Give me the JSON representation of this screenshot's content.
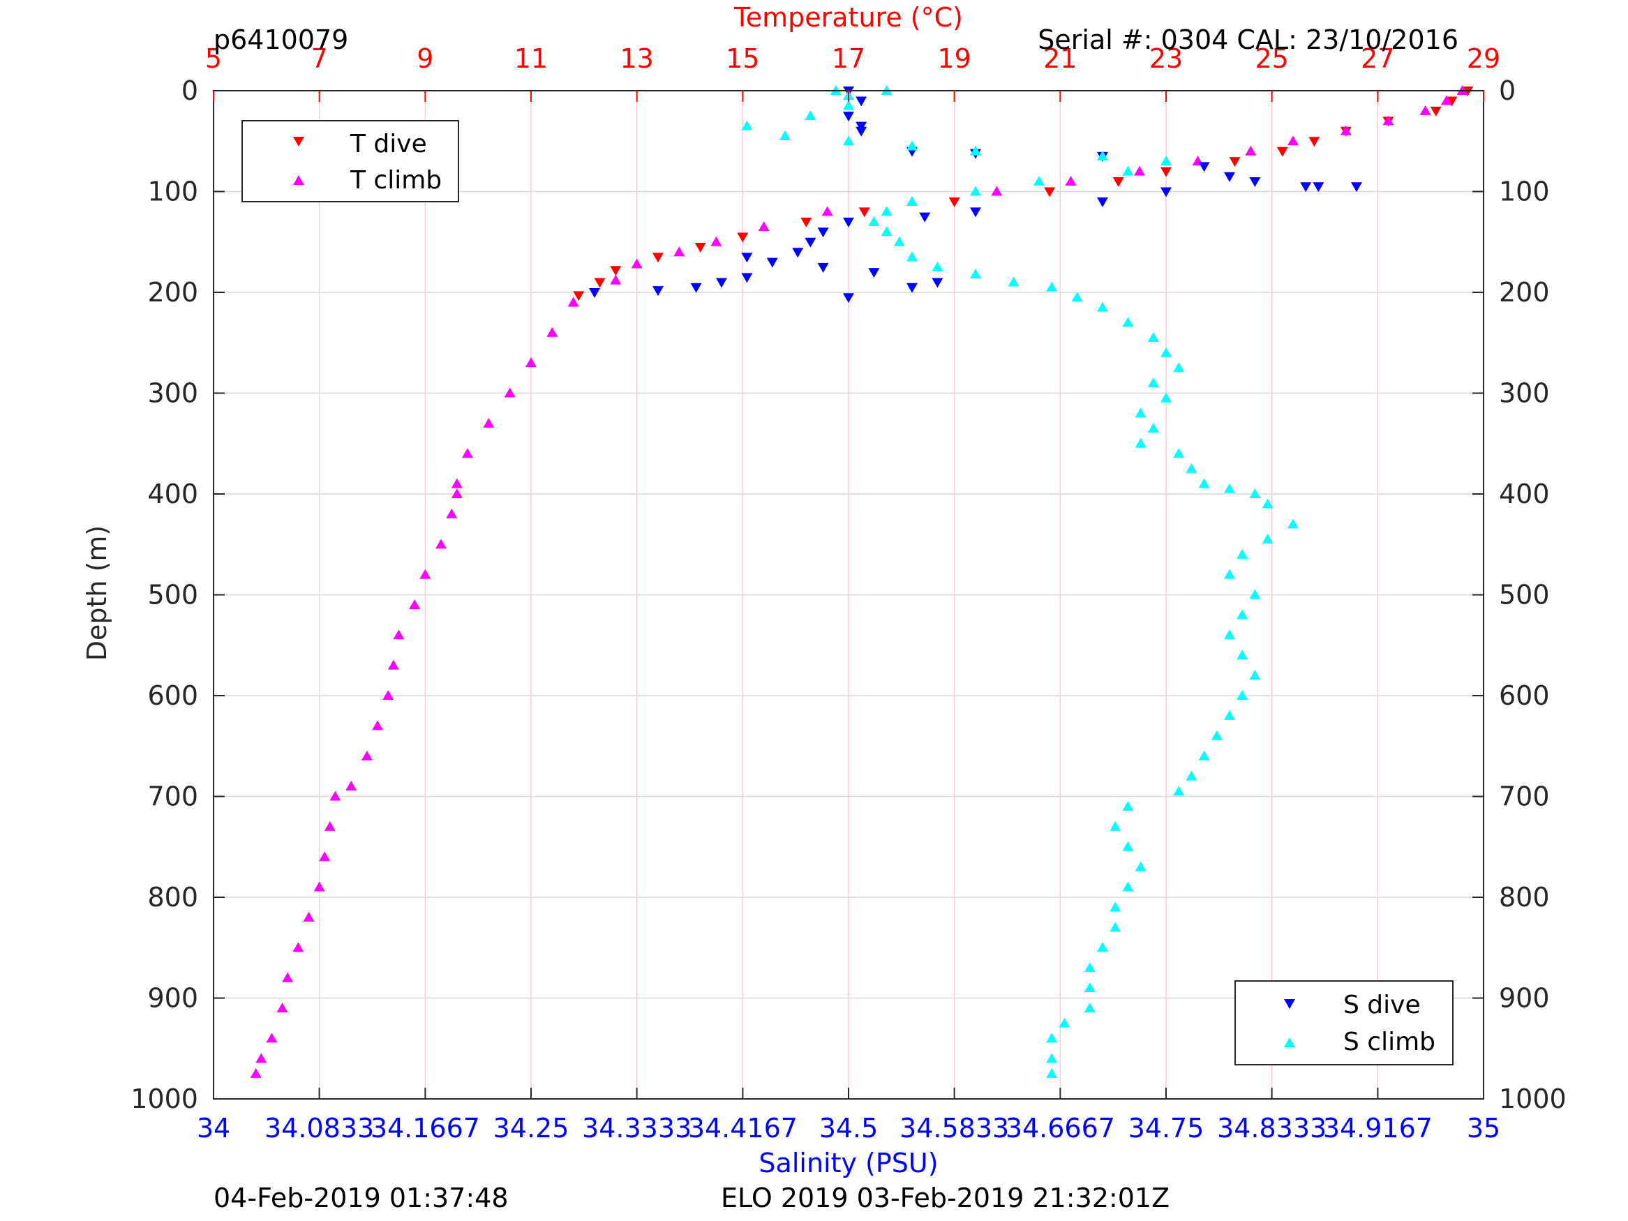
{
  "header": {
    "left": "p6410079",
    "right": "Serial #: 0304  CAL: 23/10/2016"
  },
  "footer": {
    "left": "04-Feb-2019 01:37:48",
    "center": "ELO 2019 03-Feb-2019 21:32:01Z"
  },
  "colors": {
    "t_dive": "#ff0000",
    "t_climb": "#ff00ff",
    "s_dive": "#0000ff",
    "s_climb": "#00ffff",
    "temp_axis": "#ff0000",
    "sal_axis": "#0000ff",
    "axis": "#262626"
  },
  "chart_data": {
    "type": "scatter",
    "ylabel": "Depth (m)",
    "ylim": [
      1000,
      0
    ],
    "y_ticks": [
      "0",
      "100",
      "200",
      "300",
      "400",
      "500",
      "600",
      "700",
      "800",
      "900",
      "1000"
    ],
    "y_reversed": true,
    "temperature_axis": {
      "label": "Temperature (°C)",
      "position": "top",
      "range": [
        5,
        29
      ],
      "ticks": [
        "5",
        "7",
        "9",
        "11",
        "13",
        "15",
        "17",
        "19",
        "21",
        "23",
        "25",
        "27",
        "29"
      ]
    },
    "salinity_axis": {
      "label": "Salinity (PSU)",
      "position": "bottom",
      "range": [
        34,
        35
      ],
      "ticks": [
        "34",
        "34.0833",
        "34.1667",
        "34.25",
        "34.3333",
        "34.4167",
        "34.5",
        "34.5833",
        "34.6667",
        "34.75",
        "34.8333",
        "34.9167",
        "35"
      ]
    },
    "grid": true,
    "legends": [
      {
        "placement": "top-left",
        "entries": [
          {
            "name": "T dive",
            "marker": "triangle-down",
            "color": "#ff0000"
          },
          {
            "name": "T climb",
            "marker": "triangle-up",
            "color": "#ff00ff"
          }
        ]
      },
      {
        "placement": "bottom-right",
        "entries": [
          {
            "name": "S dive",
            "marker": "triangle-down",
            "color": "#0000ff"
          },
          {
            "name": "S climb",
            "marker": "triangle-up",
            "color": "#00ffff"
          }
        ]
      }
    ],
    "series": [
      {
        "name": "T dive",
        "axis": "temperature",
        "marker": "triangle-down",
        "points": [
          [
            28.7,
            0
          ],
          [
            28.4,
            10
          ],
          [
            28.1,
            20
          ],
          [
            27.2,
            30
          ],
          [
            26.4,
            40
          ],
          [
            25.8,
            50
          ],
          [
            25.2,
            60
          ],
          [
            24.3,
            70
          ],
          [
            23.0,
            80
          ],
          [
            22.1,
            90
          ],
          [
            20.8,
            100
          ],
          [
            19.0,
            110
          ],
          [
            17.3,
            120
          ],
          [
            16.2,
            130
          ],
          [
            15.0,
            145
          ],
          [
            14.2,
            155
          ],
          [
            13.4,
            165
          ],
          [
            12.6,
            178
          ],
          [
            12.3,
            190
          ],
          [
            11.9,
            203
          ]
        ]
      },
      {
        "name": "T climb",
        "axis": "temperature",
        "marker": "triangle-up",
        "points": [
          [
            28.6,
            0
          ],
          [
            28.3,
            10
          ],
          [
            27.9,
            20
          ],
          [
            27.2,
            30
          ],
          [
            26.4,
            40
          ],
          [
            25.4,
            50
          ],
          [
            24.6,
            60
          ],
          [
            23.6,
            70
          ],
          [
            22.5,
            80
          ],
          [
            21.2,
            90
          ],
          [
            19.8,
            100
          ],
          [
            18.2,
            110
          ],
          [
            16.6,
            120
          ],
          [
            15.4,
            135
          ],
          [
            14.5,
            150
          ],
          [
            13.8,
            160
          ],
          [
            13.0,
            172
          ],
          [
            12.6,
            188
          ],
          [
            11.8,
            210
          ],
          [
            11.4,
            240
          ],
          [
            11.0,
            270
          ],
          [
            10.6,
            300
          ],
          [
            10.2,
            330
          ],
          [
            9.8,
            360
          ],
          [
            9.6,
            390
          ],
          [
            9.6,
            400
          ],
          [
            9.5,
            420
          ],
          [
            9.3,
            450
          ],
          [
            9.0,
            480
          ],
          [
            8.8,
            510
          ],
          [
            8.5,
            540
          ],
          [
            8.4,
            570
          ],
          [
            8.3,
            600
          ],
          [
            8.1,
            630
          ],
          [
            7.9,
            660
          ],
          [
            7.6,
            690
          ],
          [
            7.3,
            700
          ],
          [
            7.2,
            730
          ],
          [
            7.1,
            760
          ],
          [
            7.0,
            790
          ],
          [
            6.8,
            820
          ],
          [
            6.6,
            850
          ],
          [
            6.4,
            880
          ],
          [
            6.3,
            910
          ],
          [
            6.1,
            940
          ],
          [
            5.9,
            960
          ],
          [
            5.8,
            975
          ]
        ]
      },
      {
        "name": "S dive",
        "axis": "salinity",
        "marker": "triangle-down",
        "points": [
          [
            34.5,
            0
          ],
          [
            34.51,
            10
          ],
          [
            34.5,
            25
          ],
          [
            34.51,
            35
          ],
          [
            34.51,
            40
          ],
          [
            34.55,
            60
          ],
          [
            34.6,
            62
          ],
          [
            34.7,
            65
          ],
          [
            34.78,
            75
          ],
          [
            34.8,
            85
          ],
          [
            34.82,
            90
          ],
          [
            34.86,
            95
          ],
          [
            34.9,
            95
          ],
          [
            34.87,
            95
          ],
          [
            34.75,
            100
          ],
          [
            34.7,
            110
          ],
          [
            34.6,
            120
          ],
          [
            34.56,
            125
          ],
          [
            34.5,
            130
          ],
          [
            34.48,
            140
          ],
          [
            34.47,
            150
          ],
          [
            34.46,
            160
          ],
          [
            34.44,
            170
          ],
          [
            34.42,
            185
          ],
          [
            34.4,
            190
          ],
          [
            34.38,
            195
          ],
          [
            34.35,
            198
          ],
          [
            34.3,
            200
          ],
          [
            34.5,
            205
          ],
          [
            34.55,
            195
          ],
          [
            34.57,
            190
          ],
          [
            34.42,
            165
          ],
          [
            34.48,
            175
          ],
          [
            34.52,
            180
          ]
        ]
      },
      {
        "name": "S climb",
        "axis": "salinity",
        "marker": "triangle-up",
        "points": [
          [
            34.49,
            0
          ],
          [
            34.5,
            5
          ],
          [
            34.53,
            0
          ],
          [
            34.5,
            15
          ],
          [
            34.47,
            25
          ],
          [
            34.42,
            35
          ],
          [
            34.45,
            45
          ],
          [
            34.5,
            50
          ],
          [
            34.55,
            55
          ],
          [
            34.6,
            60
          ],
          [
            34.7,
            65
          ],
          [
            34.75,
            70
          ],
          [
            34.72,
            80
          ],
          [
            34.65,
            90
          ],
          [
            34.6,
            100
          ],
          [
            34.55,
            110
          ],
          [
            34.53,
            120
          ],
          [
            34.52,
            130
          ],
          [
            34.53,
            140
          ],
          [
            34.54,
            150
          ],
          [
            34.55,
            165
          ],
          [
            34.57,
            175
          ],
          [
            34.6,
            182
          ],
          [
            34.63,
            190
          ],
          [
            34.66,
            195
          ],
          [
            34.68,
            205
          ],
          [
            34.7,
            215
          ],
          [
            34.72,
            230
          ],
          [
            34.74,
            245
          ],
          [
            34.75,
            260
          ],
          [
            34.76,
            275
          ],
          [
            34.74,
            290
          ],
          [
            34.75,
            305
          ],
          [
            34.73,
            320
          ],
          [
            34.74,
            335
          ],
          [
            34.73,
            350
          ],
          [
            34.76,
            360
          ],
          [
            34.77,
            375
          ],
          [
            34.78,
            390
          ],
          [
            34.8,
            395
          ],
          [
            34.82,
            400
          ],
          [
            34.83,
            410
          ],
          [
            34.85,
            430
          ],
          [
            34.83,
            445
          ],
          [
            34.81,
            460
          ],
          [
            34.8,
            480
          ],
          [
            34.82,
            500
          ],
          [
            34.81,
            520
          ],
          [
            34.8,
            540
          ],
          [
            34.81,
            560
          ],
          [
            34.82,
            580
          ],
          [
            34.81,
            600
          ],
          [
            34.8,
            620
          ],
          [
            34.79,
            640
          ],
          [
            34.78,
            660
          ],
          [
            34.77,
            680
          ],
          [
            34.76,
            695
          ],
          [
            34.72,
            710
          ],
          [
            34.71,
            730
          ],
          [
            34.72,
            750
          ],
          [
            34.73,
            770
          ],
          [
            34.72,
            790
          ],
          [
            34.71,
            810
          ],
          [
            34.71,
            830
          ],
          [
            34.7,
            850
          ],
          [
            34.69,
            870
          ],
          [
            34.69,
            890
          ],
          [
            34.69,
            910
          ],
          [
            34.67,
            925
          ],
          [
            34.66,
            940
          ],
          [
            34.66,
            960
          ],
          [
            34.66,
            975
          ]
        ]
      }
    ]
  }
}
